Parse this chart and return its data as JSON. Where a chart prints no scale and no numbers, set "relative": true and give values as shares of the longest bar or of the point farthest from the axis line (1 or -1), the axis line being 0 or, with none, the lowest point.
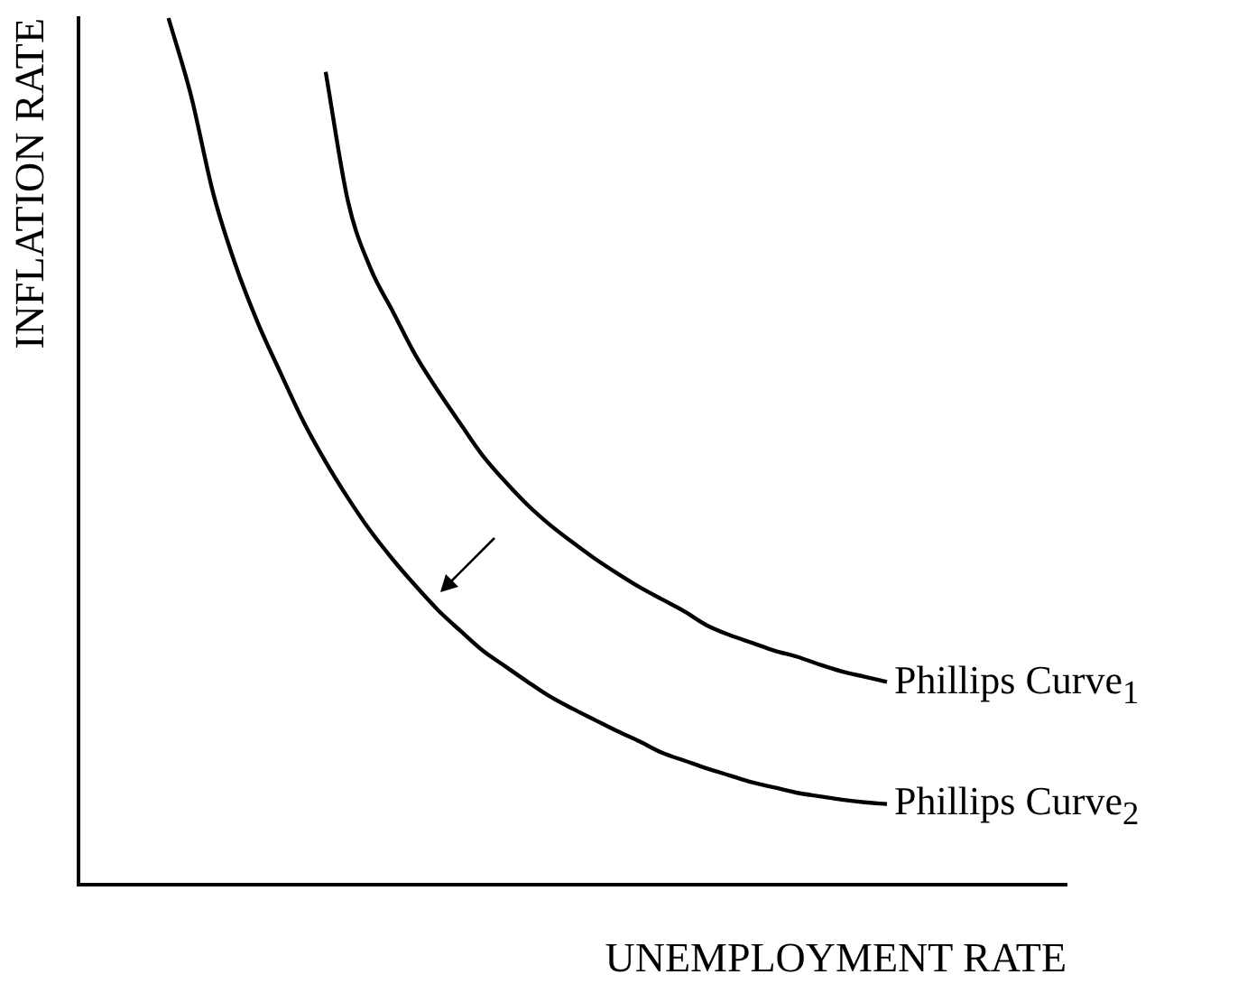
{
  "chart_data": {
    "type": "line",
    "relative": true,
    "xlabel": "UNEMPLOYMENT RATE",
    "ylabel": "INFLATION RATE",
    "legend": false,
    "grid": false,
    "marker": "none",
    "line_style": "solid",
    "categories": [
      null,
      null,
      null,
      null,
      null,
      null,
      null,
      null,
      null,
      null,
      null,
      null,
      null,
      null,
      null,
      null,
      null,
      null,
      null,
      null,
      null,
      null,
      null,
      null,
      null,
      null,
      null,
      null,
      null,
      null,
      null,
      null,
      null,
      null,
      null,
      null,
      null,
      null,
      null,
      null,
      null,
      null,
      null,
      null,
      null
    ],
    "series": [
      {
        "name": "Phillips Curve$_{1}$",
        "color": "#000000",
        "values": [
          null,
          null,
          null,
          null,
          null,
          null,
          null,
          null,
          null,
          null,
          null,
          0.938,
          0.788,
          0.711,
          0.661,
          0.611,
          0.57,
          0.532,
          0.495,
          0.465,
          0.438,
          0.415,
          0.395,
          0.376,
          0.359,
          0.343,
          0.329,
          0.315,
          0.299,
          0.288,
          0.279,
          0.27,
          0.263,
          0.254,
          0.246,
          0.24,
          0.234,
          null,
          null,
          null,
          null,
          null,
          null,
          null,
          null
        ]
      },
      {
        "name": "Phillips Curve$_{2}$",
        "color": "#000000",
        "values": [
          null,
          null,
          null,
          null,
          1.0,
          0.911,
          0.797,
          0.714,
          0.647,
          0.59,
          0.535,
          0.488,
          0.446,
          0.408,
          0.375,
          0.345,
          0.317,
          0.293,
          0.27,
          0.252,
          0.234,
          0.217,
          0.203,
          0.19,
          0.177,
          0.165,
          0.152,
          0.143,
          0.134,
          0.126,
          0.118,
          0.112,
          0.106,
          0.102,
          0.098,
          0.095,
          0.093,
          null,
          null,
          null,
          null,
          null,
          null,
          null,
          null
        ]
      }
    ]
  }
}
